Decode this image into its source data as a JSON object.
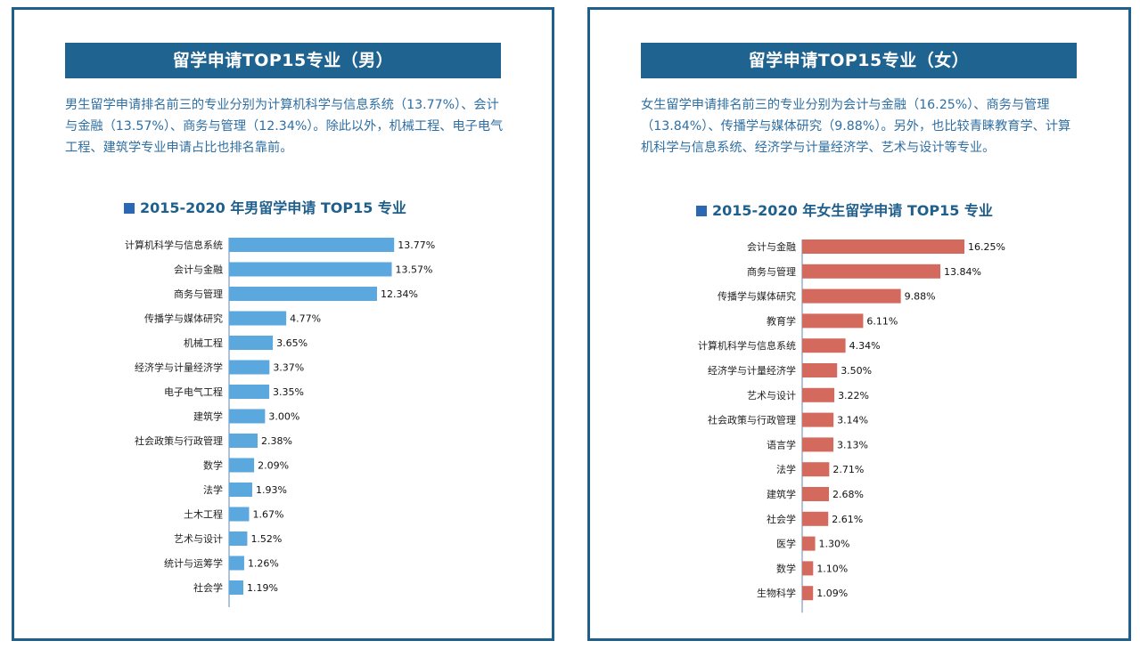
{
  "male": {
    "banner": "留学申请TOP15专业（男）",
    "description": "男生留学申请排名前三的专业分别为计算机科学与信息系统（13.77%）、会计与金融（13.57%）、商务与管理（12.34%）。除此以外，机械工程、电子电气工程、建筑学专业申请占比也排名靠前。",
    "chart_title": "2015-2020 年男留学申请 TOP15 专业"
  },
  "female": {
    "banner": "留学申请TOP15专业（女）",
    "description": "女生留学申请排名前三的专业分别为会计与金融（16.25%）、商务与管理（13.84%）、传播学与媒体研究（9.88%）。另外，也比较青睐教育学、计算机科学与信息系统、经济学与计量经济学、艺术与设计等专业。",
    "chart_title": "2015-2020 年女生留学申请 TOP15 专业"
  },
  "colors": {
    "male_bar": "#5aa8de",
    "female_bar": "#d46a5e",
    "border": "#1f5f8c"
  },
  "chart_data": [
    {
      "type": "bar",
      "orientation": "horizontal",
      "title": "2015-2020 年男留学申请 TOP15 专业",
      "categories": [
        "计算机科学与信息系统",
        "会计与金融",
        "商务与管理",
        "传播学与媒体研究",
        "机械工程",
        "经济学与计量经济学",
        "电子电气工程",
        "建筑学",
        "社会政策与行政管理",
        "数学",
        "法学",
        "土木工程",
        "艺术与设计",
        "统计与运筹学",
        "社会学"
      ],
      "values": [
        13.77,
        13.57,
        12.34,
        4.77,
        3.65,
        3.37,
        3.35,
        3.0,
        2.38,
        2.09,
        1.93,
        1.67,
        1.52,
        1.26,
        1.19
      ],
      "value_labels": [
        "13.77%",
        "13.57%",
        "12.34%",
        "4.77%",
        "3.65%",
        "3.37%",
        "3.35%",
        "3.00%",
        "2.38%",
        "2.09%",
        "1.93%",
        "1.67%",
        "1.52%",
        "1.26%",
        "1.19%"
      ],
      "grid": false,
      "legend": "none"
    },
    {
      "type": "bar",
      "orientation": "horizontal",
      "title": "2015-2020 年女生留学申请 TOP15 专业",
      "categories": [
        "会计与金融",
        "商务与管理",
        "传播学与媒体研究",
        "教育学",
        "计算机科学与信息系统",
        "经济学与计量经济学",
        "艺术与设计",
        "社会政策与行政管理",
        "语言学",
        "法学",
        "建筑学",
        "社会学",
        "医学",
        "数学",
        "生物科学"
      ],
      "values": [
        16.25,
        13.84,
        9.88,
        6.11,
        4.34,
        3.5,
        3.22,
        3.14,
        3.13,
        2.71,
        2.68,
        2.61,
        1.3,
        1.1,
        1.09
      ],
      "value_labels": [
        "16.25%",
        "13.84%",
        "9.88%",
        "6.11%",
        "4.34%",
        "3.50%",
        "3.22%",
        "3.14%",
        "3.13%",
        "2.71%",
        "2.68%",
        "2.61%",
        "1.30%",
        "1.10%",
        "1.09%"
      ],
      "grid": false,
      "legend": "none"
    }
  ]
}
